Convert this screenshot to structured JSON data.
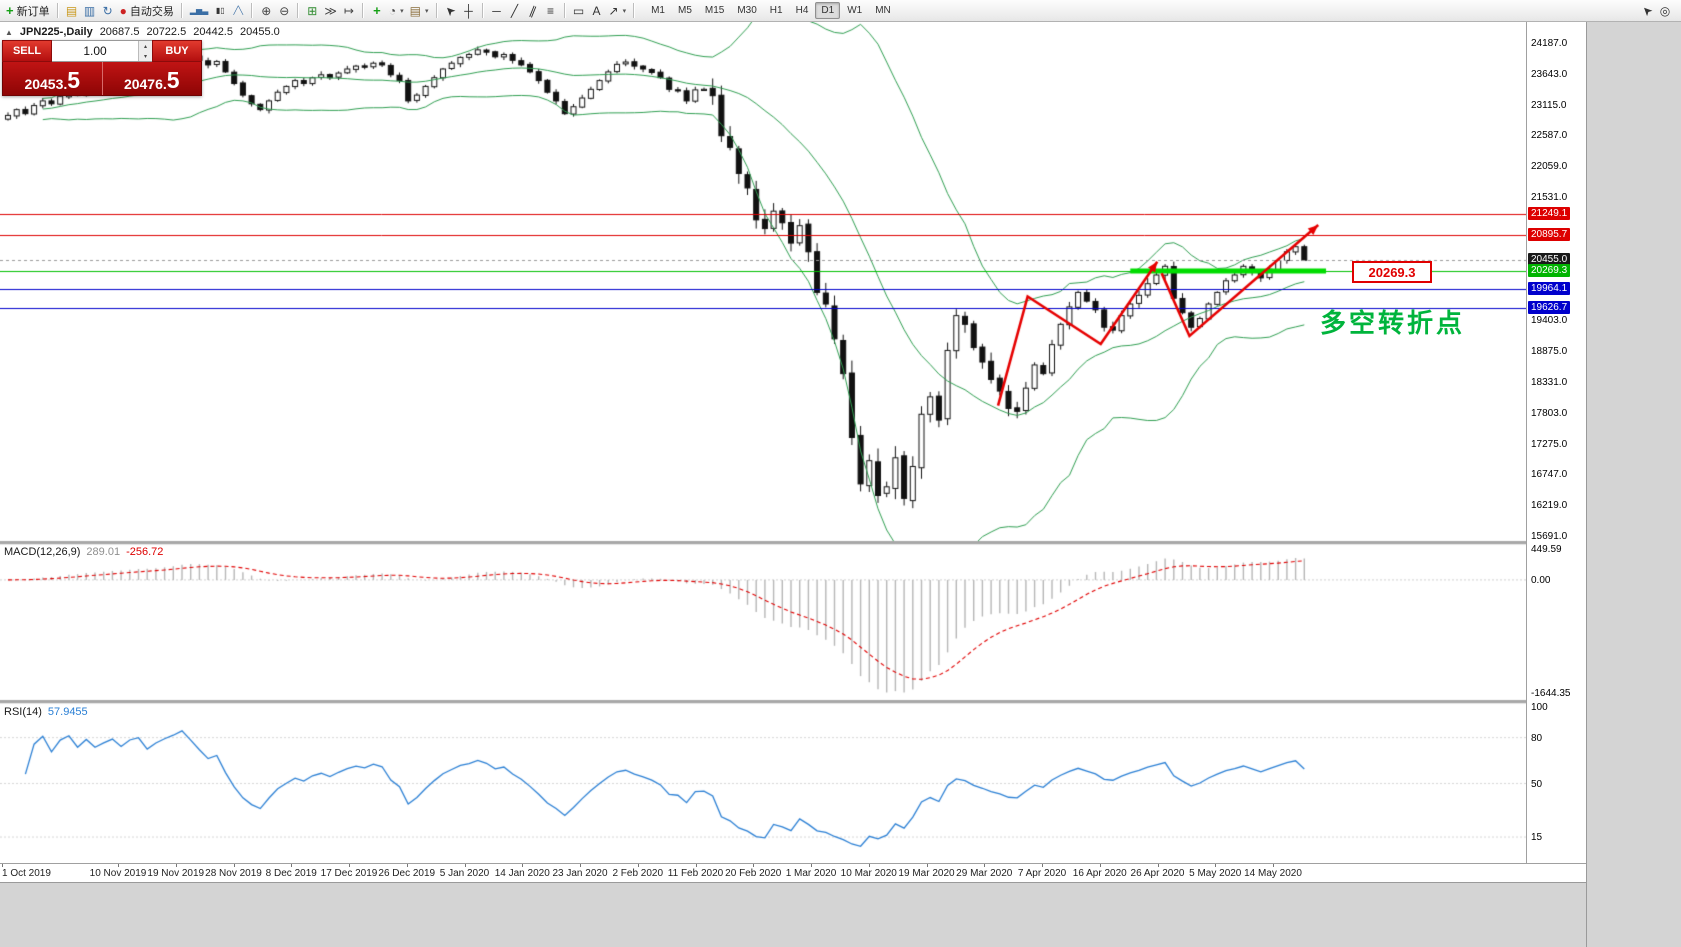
{
  "colors": {
    "bull": "#ffffff",
    "bear": "#111111",
    "wick": "#111111",
    "bands": "#2e9e50",
    "macd_hist": "#b6b6b6",
    "macd_signal": "#e00000",
    "rsi": "#2a7fd4",
    "level_red": "#dd0000",
    "level_blue": "#0000cc",
    "level_green": "#00c000",
    "support_thick": "#00dc00",
    "arrow": "#e60000",
    "annotation": "#00b43c",
    "current_line": "#999999"
  },
  "toolbar": {
    "new_order_label": "新订单",
    "autotrading_label": "自动交易",
    "icons_left": [
      {
        "name": "new-order",
        "glyph": "+",
        "color": "#15a015",
        "bold": true,
        "label": "新订单"
      },
      {
        "sep": true
      },
      {
        "name": "new-chart",
        "glyph": "▤",
        "color": "#c99718"
      },
      {
        "name": "profiles",
        "glyph": "▥",
        "color": "#3a6ea5"
      },
      {
        "name": "refresh",
        "glyph": "↻",
        "color": "#3a6ea5"
      },
      {
        "name": "autotrading",
        "glyph": "●",
        "color": "#cc2222",
        "label": "自动交易"
      },
      {
        "sep": true
      },
      {
        "name": "bar-chart",
        "glyph": "▂▅▃",
        "color": "#3a6ea5",
        "small": true
      },
      {
        "name": "candle-chart",
        "glyph": "▮▯",
        "color": "#333333",
        "small": true
      },
      {
        "name": "line-chart",
        "glyph": "╱╲",
        "color": "#3a6ea5",
        "small": true
      },
      {
        "sep": true
      },
      {
        "name": "zoom-in",
        "glyph": "⊕",
        "color": "#444444"
      },
      {
        "name": "zoom-out",
        "glyph": "⊖",
        "color": "#444444"
      },
      {
        "sep": true
      },
      {
        "name": "tile-windows",
        "glyph": "⊞",
        "color": "#2e8b2e"
      },
      {
        "name": "auto-scroll",
        "glyph": "≫",
        "color": "#444444"
      },
      {
        "name": "chart-shift",
        "glyph": "↦",
        "color": "#444444"
      },
      {
        "sep": true
      },
      {
        "name": "indicators",
        "glyph": "+",
        "color": "#15a015",
        "bold": true
      },
      {
        "name": "periods",
        "glyph": "◔",
        "color": "#444444",
        "caret": true
      },
      {
        "name": "templates",
        "glyph": "▤",
        "color": "#8a6d3b",
        "caret": true
      },
      {
        "sep": true
      },
      {
        "name": "cursor",
        "glyph": "➤",
        "color": "#333333",
        "rotate": -135
      },
      {
        "name": "crosshair",
        "glyph": "┼",
        "color": "#333333"
      },
      {
        "sep": true
      },
      {
        "name": "horizontal-line",
        "glyph": "─",
        "color": "#333333"
      },
      {
        "name": "trendline",
        "glyph": "╱",
        "color": "#333333"
      },
      {
        "name": "channel",
        "glyph": "∥",
        "color": "#333333",
        "rotate": 22
      },
      {
        "name": "fibonacci",
        "glyph": "≡",
        "color": "#333333"
      },
      {
        "sep": true
      },
      {
        "name": "shapes",
        "glyph": "▭",
        "color": "#333333"
      },
      {
        "name": "text",
        "glyph": "A",
        "color": "#333333"
      },
      {
        "name": "arrows",
        "glyph": "↗",
        "color": "#333333",
        "caret": true
      },
      {
        "sep": true
      }
    ],
    "timeframes": [
      "M1",
      "M5",
      "M15",
      "M30",
      "H1",
      "H4",
      "D1",
      "W1",
      "MN"
    ],
    "active_timeframe": "D1",
    "icons_right": [
      {
        "name": "pointer-tool",
        "glyph": "➤",
        "color": "#333333",
        "rotate": -135
      },
      {
        "name": "magnifier",
        "glyph": "◎",
        "color": "#333333"
      }
    ]
  },
  "chart": {
    "title": "JPN225-,Daily",
    "ohlc": {
      "open": "20687.5",
      "high": "20722.5",
      "low": "20442.5",
      "close": "20455.0"
    }
  },
  "one_click": {
    "sell_label": "SELL",
    "buy_label": "BUY",
    "volume": "1.00",
    "sell_price_main": "20453.",
    "sell_price_big": "5",
    "buy_price_main": "20476.",
    "buy_price_big": "5",
    "spin_up": "▴",
    "spin_down": "▾"
  },
  "levels": {
    "green_label": "20269.3",
    "lines": [
      {
        "price": 21249.1,
        "color": "#dd0000",
        "w": 1
      },
      {
        "price": 20895.7,
        "color": "#dd0000",
        "w": 1
      },
      {
        "price": 20269.3,
        "color": "#00c000",
        "w": 1.2
      },
      {
        "price": 19964.1,
        "color": "#0000cc",
        "w": 1.2
      },
      {
        "price": 19626.7,
        "color": "#0000cc",
        "w": 1.2
      }
    ],
    "current_price": 20455.0,
    "support_segment": {
      "price": 20269.3,
      "bar_start": 129,
      "bar_end": 151.5
    }
  },
  "annotation": {
    "text": "多空转折点"
  },
  "axis": {
    "price_labels": [
      {
        "text": "24187.0",
        "price": 24187.0
      },
      {
        "text": "23643.0",
        "price": 23643.0
      },
      {
        "text": "23115.0",
        "price": 23115.0
      },
      {
        "text": "22587.0",
        "price": 22587.0
      },
      {
        "text": "22059.0",
        "price": 22059.0
      },
      {
        "text": "21531.0",
        "price": 21531.0
      },
      {
        "text": "19403.0",
        "price": 19403.0
      },
      {
        "text": "18875.0",
        "price": 18875.0
      },
      {
        "text": "18331.0",
        "price": 18331.0
      },
      {
        "text": "17803.0",
        "price": 17803.0
      },
      {
        "text": "17275.0",
        "price": 17275.0
      },
      {
        "text": "16747.0",
        "price": 16747.0
      },
      {
        "text": "16219.0",
        "price": 16219.0
      },
      {
        "text": "15691.0",
        "price": 15691.0
      }
    ],
    "badges": [
      {
        "text": "21249.1",
        "price": 21249.1,
        "bg": "#dd0000"
      },
      {
        "text": "20895.7",
        "price": 20895.7,
        "bg": "#dd0000"
      },
      {
        "text": "20455.0",
        "price": 20455.0,
        "bg": "#1a1a1a"
      },
      {
        "text": "20269.3",
        "price": 20269.3,
        "bg": "#00b400"
      },
      {
        "text": "19964.1",
        "price": 19964.1,
        "bg": "#0000cc"
      },
      {
        "text": "19626.7",
        "price": 19626.7,
        "bg": "#0000cc"
      }
    ],
    "dates": [
      "1 Oct 2019",
      "10 Nov 2019",
      "19 Nov 2019",
      "28 Nov 2019",
      "8 Dec 2019",
      "17 Dec 2019",
      "26 Dec 2019",
      "5 Jan 2020",
      "14 Jan 2020",
      "23 Jan 2020",
      "2 Feb 2020",
      "11 Feb 2020",
      "20 Feb 2020",
      "1 Mar 2020",
      "10 Mar 2020",
      "19 Mar 2020",
      "29 Mar 2020",
      "7 Apr 2020",
      "16 Apr 2020",
      "26 Apr 2020",
      "5 May 2020",
      "14 May 2020"
    ]
  },
  "macd_panel": {
    "label": "MACD(12,26,9)",
    "value1": "289.01",
    "value2": "-256.72",
    "scale": [
      {
        "text": "449.59",
        "v": 449.59
      },
      {
        "text": "0.00",
        "v": 0
      },
      {
        "text": "-1644.35",
        "v": -1644.35
      }
    ]
  },
  "rsi_panel": {
    "label": "RSI(14)",
    "value": "57.9455",
    "scale": [
      {
        "text": "100",
        "v": 100
      },
      {
        "text": "80",
        "v": 80
      },
      {
        "text": "50",
        "v": 50
      },
      {
        "text": "15",
        "v": 15
      }
    ]
  },
  "chart_data": {
    "type": "candlestick",
    "symbol": "JPN225-",
    "timeframe": "Daily",
    "ylim": [
      15691,
      24187
    ],
    "x_axis_labels": [
      "1 Oct 2019",
      "10 Nov 2019",
      "19 Nov 2019",
      "28 Nov 2019",
      "8 Dec 2019",
      "17 Dec 2019",
      "26 Dec 2019",
      "5 Jan 2020",
      "14 Jan 2020",
      "23 Jan 2020",
      "2 Feb 2020",
      "11 Feb 2020",
      "20 Feb 2020",
      "1 Mar 2020",
      "10 Mar 2020",
      "19 Mar 2020",
      "29 Mar 2020",
      "7 Apr 2020",
      "16 Apr 2020",
      "26 Apr 2020",
      "5 May 2020",
      "14 May 2020"
    ],
    "closes": [
      22950,
      23050,
      22980,
      23120,
      23200,
      23150,
      23280,
      23350,
      23300,
      23420,
      23380,
      23450,
      23520,
      23480,
      23600,
      23650,
      23580,
      23700,
      23800,
      23900,
      24050,
      23980,
      23900,
      23820,
      23880,
      23700,
      23500,
      23300,
      23150,
      23050,
      23200,
      23350,
      23450,
      23550,
      23500,
      23600,
      23650,
      23600,
      23680,
      23750,
      23800,
      23780,
      23850,
      23820,
      23650,
      23550,
      23200,
      23300,
      23450,
      23600,
      23750,
      23850,
      23950,
      24000,
      24080,
      24040,
      23960,
      24000,
      23900,
      23820,
      23700,
      23550,
      23350,
      23200,
      22980,
      23100,
      23250,
      23400,
      23550,
      23700,
      23830,
      23870,
      23800,
      23750,
      23690,
      23600,
      23400,
      23380,
      23200,
      23390,
      23400,
      23290,
      22600,
      22400,
      21950,
      21700,
      21150,
      21000,
      21300,
      21100,
      20750,
      21050,
      20600,
      19900,
      19700,
      19100,
      18500,
      17400,
      16600,
      17000,
      16400,
      16550,
      17050,
      16350,
      16900,
      17800,
      18100,
      17700,
      18900,
      19500,
      19350,
      18950,
      18700,
      18400,
      18200,
      17900,
      17850,
      18250,
      18650,
      18500,
      19000,
      19350,
      19650,
      19900,
      19750,
      19600,
      19300,
      19250,
      19500,
      19700,
      19850,
      20050,
      20200,
      20350,
      19800,
      19550,
      19300,
      19450,
      19700,
      19900,
      20100,
      20200,
      20350,
      20250,
      20150,
      20300,
      20450,
      20600,
      20687.5,
      20455
    ],
    "last_candle": [
      20687.5,
      20722.5,
      20442.5,
      20455.0
    ],
    "indicators": [
      {
        "name": "Bollinger Bands",
        "period": 20,
        "deviation": 2
      },
      {
        "name": "MACD",
        "fast": 12,
        "slow": 26,
        "signal": 9,
        "current": [
          289.01,
          -256.72
        ]
      },
      {
        "name": "RSI",
        "period": 14,
        "current": 57.9455
      }
    ],
    "trend_arrows": [
      [
        [
          113.8,
          17950
        ],
        [
          117.2,
          19830
        ],
        [
          125.6,
          19010
        ],
        [
          132.1,
          20430
        ]
      ],
      [
        [
          132.6,
          20230
        ],
        [
          135.8,
          19150
        ],
        [
          150.6,
          21060
        ]
      ]
    ]
  }
}
